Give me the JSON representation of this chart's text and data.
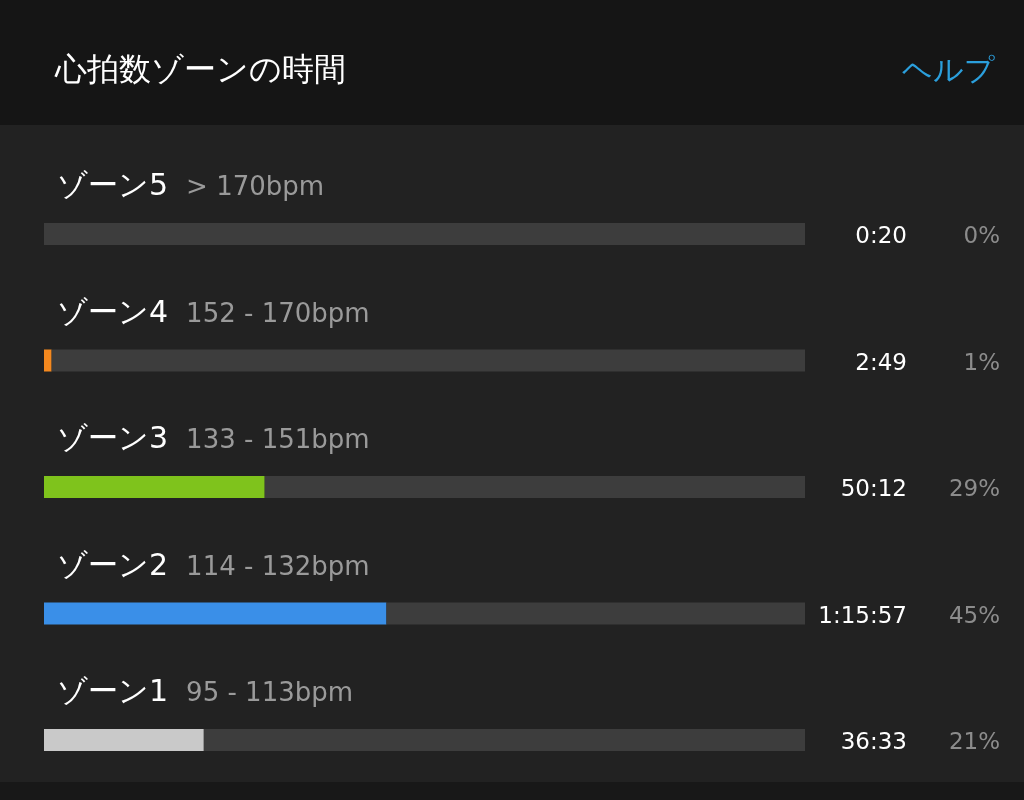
{
  "chart_data": {
    "type": "bar",
    "orientation": "horizontal",
    "stacked": true,
    "title": "心拍数ゾーンの時間",
    "categories": [
      "ゾーン5",
      "ゾーン4",
      "ゾーン3",
      "ゾーン2",
      "ゾーン1"
    ],
    "series": [
      {
        "colors": [
          "#e8442e",
          "#f5891f",
          "#7fc31c",
          "#3a8fe8",
          "#c9c9c9"
        ],
        "values": [
          0,
          1,
          29,
          45,
          21
        ],
        "value_labels": [
          "0%",
          "1%",
          "29%",
          "45%",
          "21%"
        ]
      },
      {
        "color": "#3d3d3d",
        "values": [
          100,
          99,
          71,
          55,
          79
        ]
      }
    ],
    "xlim": [
      0,
      100
    ],
    "tick_labels": "y",
    "annotations": [
      "ヘルプ",
      "> 170bpm",
      "0:20",
      "152 - 170bpm",
      "2:49",
      "133 - 151bpm",
      "50:12",
      "114 - 132bpm",
      "1:15:57",
      "95 - 113bpm",
      "36:33"
    ]
  }
}
